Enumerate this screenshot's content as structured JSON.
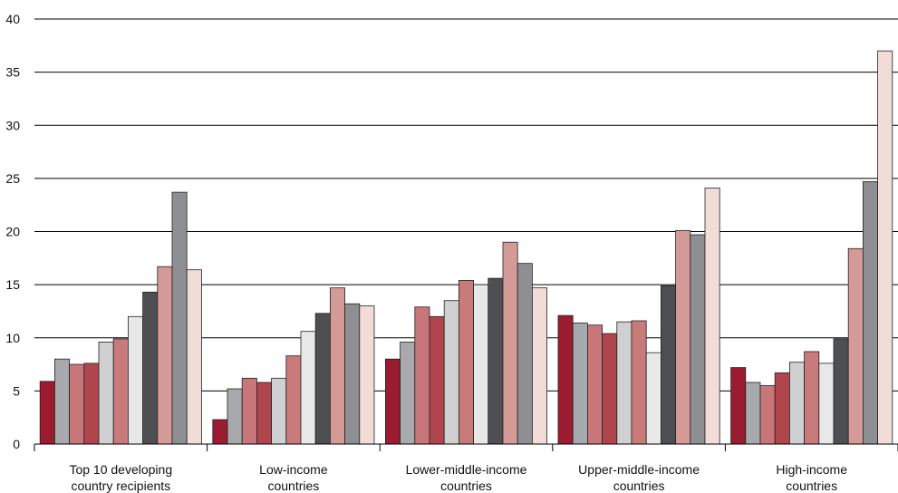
{
  "chart_data": {
    "type": "bar",
    "title": "",
    "xlabel": "",
    "ylabel": "",
    "ylim": [
      0,
      40
    ],
    "yticks": [
      0,
      5,
      10,
      15,
      20,
      25,
      30,
      35,
      40
    ],
    "grid": "horizontal",
    "legend": "none",
    "categories": [
      [
        "Top 10 developing",
        "country recipients"
      ],
      [
        "Low-income",
        "countries"
      ],
      [
        "Lower-middle-income",
        "countries"
      ],
      [
        "Upper-middle-income",
        "countries"
      ],
      [
        "High-income",
        "countries"
      ]
    ],
    "series": [
      {
        "color": "#9b1b30",
        "values": [
          5.9,
          2.3,
          8.0,
          12.1,
          7.2
        ]
      },
      {
        "color": "#a7a9ac",
        "values": [
          8.0,
          5.2,
          9.6,
          11.4,
          5.8
        ]
      },
      {
        "color": "#c9767a",
        "values": [
          7.5,
          6.2,
          12.9,
          11.2,
          5.5
        ]
      },
      {
        "color": "#b0464c",
        "values": [
          7.6,
          5.8,
          12.0,
          10.4,
          6.7
        ]
      },
      {
        "color": "#cfd0d2",
        "values": [
          9.6,
          6.2,
          13.5,
          11.5,
          7.7
        ]
      },
      {
        "color": "#c97a7a",
        "values": [
          9.9,
          8.3,
          15.4,
          11.6,
          8.7
        ]
      },
      {
        "color": "#e8e8e9",
        "values": [
          12.0,
          10.6,
          15.0,
          8.6,
          7.6
        ]
      },
      {
        "color": "#4d4f52",
        "values": [
          14.3,
          12.3,
          15.6,
          14.9,
          9.9
        ]
      },
      {
        "color": "#d49a98",
        "values": [
          16.7,
          14.7,
          19.0,
          20.1,
          18.4
        ]
      },
      {
        "color": "#8d8f92",
        "values": [
          23.7,
          13.2,
          17.0,
          19.7,
          24.7
        ]
      },
      {
        "color": "#f2dcd8",
        "values": [
          16.4,
          13.0,
          14.7,
          24.1,
          37.0
        ]
      }
    ]
  }
}
